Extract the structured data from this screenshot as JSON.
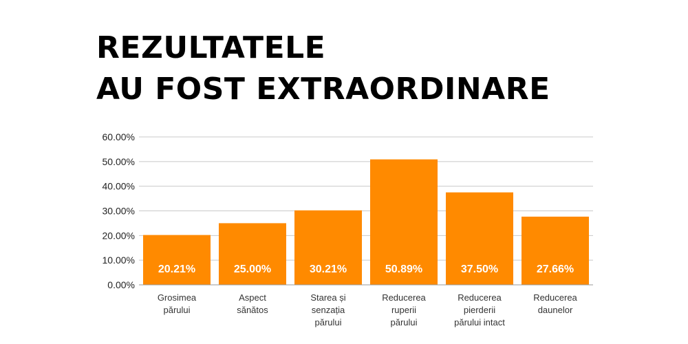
{
  "title": {
    "line1": "REZULTATELE",
    "line2": "AU FOST EXTRAORDINARE"
  },
  "chart_data": {
    "type": "bar",
    "categories": [
      [
        "Grosimea",
        "părului"
      ],
      [
        "Aspect",
        "sănătos"
      ],
      [
        "Starea și",
        "senzația",
        "părului"
      ],
      [
        "Reducerea",
        "ruperii",
        "părului"
      ],
      [
        "Reducerea",
        "pierderii",
        "părului intact"
      ],
      [
        "Reducerea",
        "daunelor"
      ]
    ],
    "values": [
      20.21,
      25.0,
      30.21,
      50.89,
      37.5,
      27.66
    ],
    "data_labels": [
      "20.21%",
      "25.00%",
      "30.21%",
      "50.89%",
      "37.50%",
      "27.66%"
    ],
    "y_ticks": [
      "0.00%",
      "10.00%",
      "20.00%",
      "30.00%",
      "40.00%",
      "50.00%",
      "60.00%"
    ],
    "ylim": [
      0,
      60
    ],
    "grid": true,
    "bar_color": "#FF8A00",
    "grid_color": "#C8C8C8"
  }
}
